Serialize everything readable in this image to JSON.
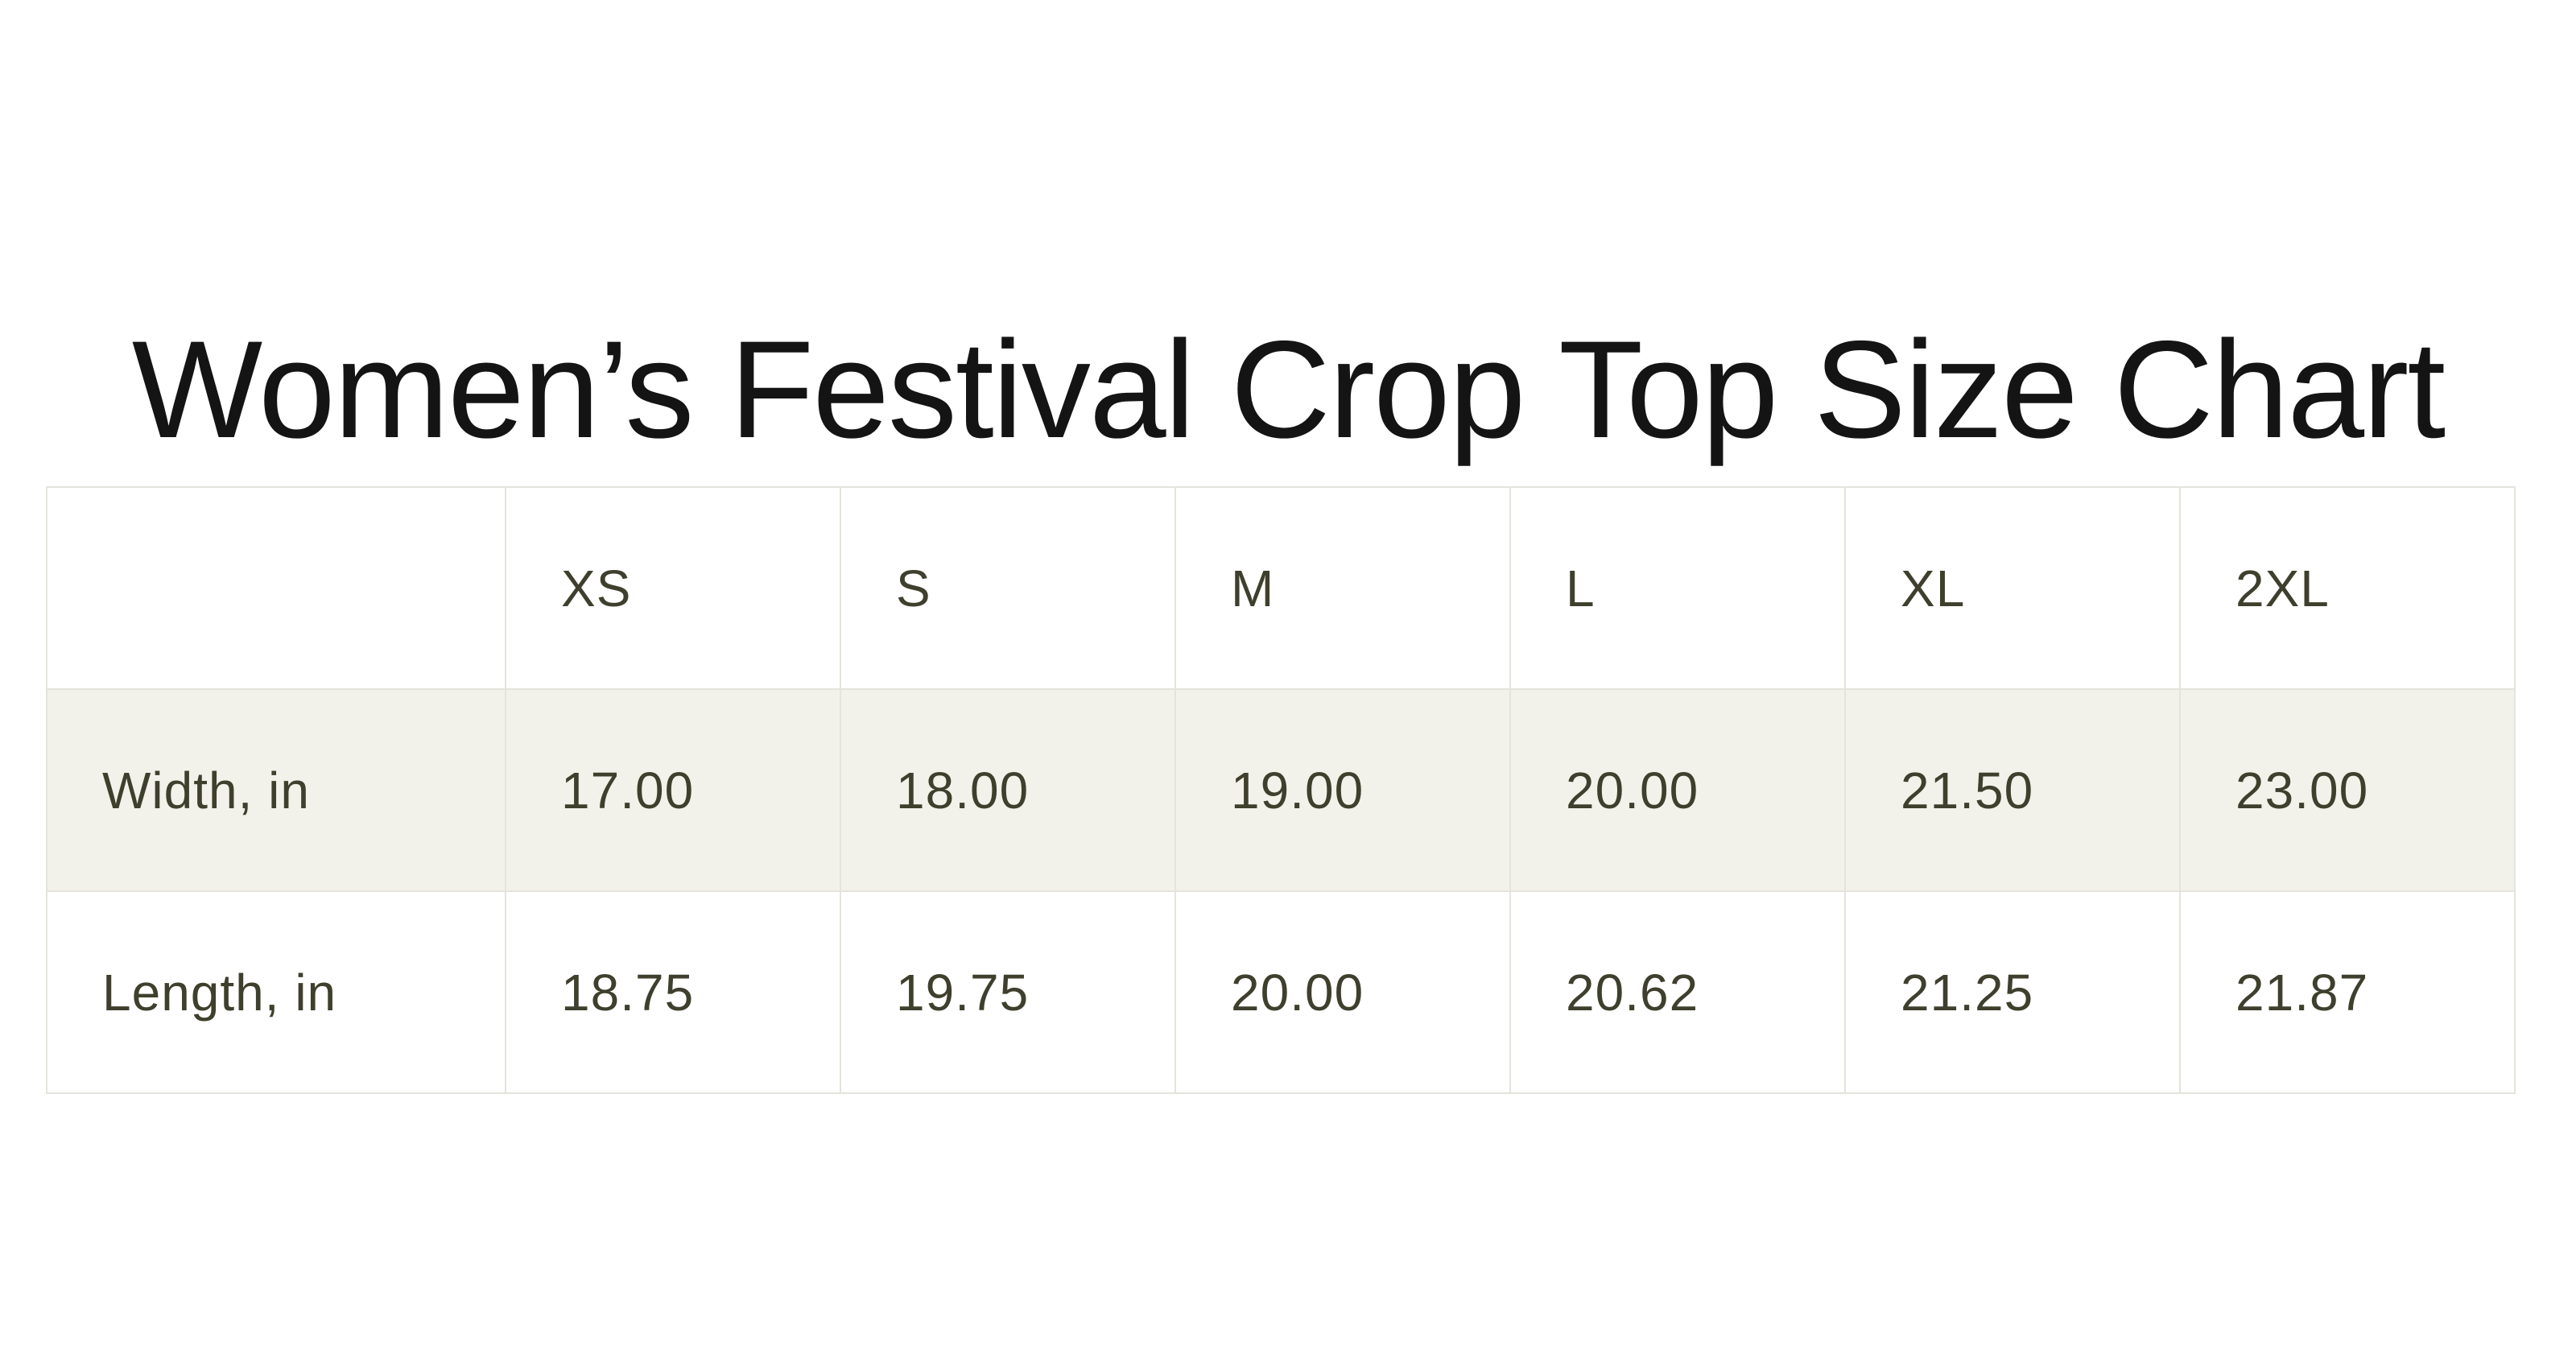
{
  "page": {
    "title": "Women’s Festival Crop Top Size Chart"
  },
  "colors": {
    "background": "#ffffff",
    "title_text": "#141414",
    "table_text": "#3f3f2d",
    "table_border": "#e4e4dc",
    "shaded_row_background": "#f2f2ea"
  },
  "chart_data": {
    "type": "table",
    "title": "Women’s Festival Crop Top Size Chart",
    "columns": [
      "",
      "XS",
      "S",
      "M",
      "L",
      "XL",
      "2XL"
    ],
    "rows": [
      {
        "label": "Width, in",
        "values": [
          "17.00",
          "18.00",
          "19.00",
          "20.00",
          "21.50",
          "23.00"
        ]
      },
      {
        "label": "Length, in",
        "values": [
          "18.75",
          "19.75",
          "20.00",
          "20.62",
          "21.25",
          "21.87"
        ]
      }
    ]
  },
  "table": {
    "header": {
      "col0": "",
      "col1": "XS",
      "col2": "S",
      "col3": "M",
      "col4": "L",
      "col5": "XL",
      "col6": "2XL"
    },
    "width_row": {
      "label": "Width, in",
      "xs": "17.00",
      "s": "18.00",
      "m": "19.00",
      "l": "20.00",
      "xl": "21.50",
      "xxl": "23.00"
    },
    "length_row": {
      "label": "Length, in",
      "xs": "18.75",
      "s": "19.75",
      "m": "20.00",
      "l": "20.62",
      "xl": "21.25",
      "xxl": "21.87"
    }
  }
}
